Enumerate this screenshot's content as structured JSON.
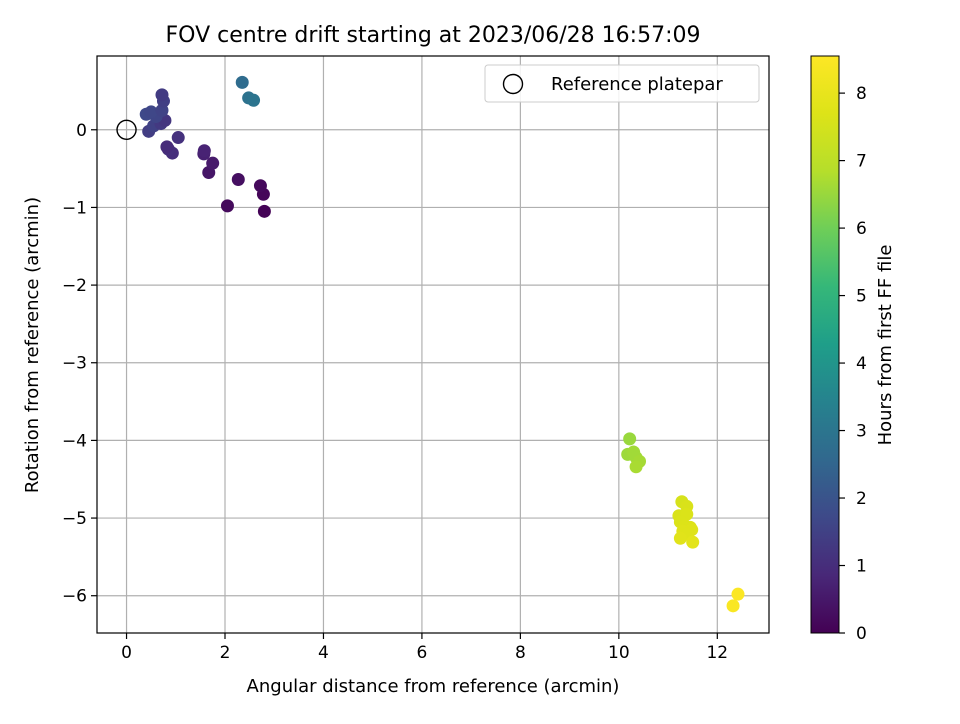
{
  "chart_data": {
    "type": "scatter",
    "title": "FOV centre drift starting at 2023/06/28 16:57:09",
    "xlabel": "Angular distance from reference (arcmin)",
    "ylabel": "Rotation from reference (arcmin)",
    "xlim": [
      -0.6,
      13.05
    ],
    "ylim": [
      -6.48,
      0.95
    ],
    "xticks": [
      0,
      2,
      4,
      6,
      8,
      10,
      12
    ],
    "yticks": [
      0,
      -1,
      -2,
      -3,
      -4,
      -5,
      -6
    ],
    "xtick_labels": [
      "0",
      "2",
      "4",
      "6",
      "8",
      "10",
      "12"
    ],
    "ytick_labels": [
      "0",
      "−1",
      "−2",
      "−3",
      "−4",
      "−5",
      "−6"
    ],
    "grid": true,
    "legend": {
      "placement": "top-right",
      "entries": [
        "Reference platepar"
      ]
    },
    "reference_point": {
      "x": 0,
      "y": 0,
      "label": "Reference platepar"
    },
    "colorbar": {
      "label": "Hours from first FF file",
      "colormap": "viridis",
      "range": [
        0,
        8.55
      ],
      "ticks": [
        0,
        1,
        2,
        3,
        4,
        5,
        6,
        7,
        8
      ],
      "tick_labels": [
        "0",
        "1",
        "2",
        "3",
        "4",
        "5",
        "6",
        "7",
        "8"
      ]
    },
    "points": [
      {
        "x": 2.8,
        "y": -1.05,
        "h": 0.05
      },
      {
        "x": 2.05,
        "y": -0.98,
        "h": 0.2
      },
      {
        "x": 2.78,
        "y": -0.83,
        "h": 0.12
      },
      {
        "x": 2.72,
        "y": -0.72,
        "h": 0.18
      },
      {
        "x": 2.27,
        "y": -0.64,
        "h": 0.3
      },
      {
        "x": 1.67,
        "y": -0.55,
        "h": 0.45
      },
      {
        "x": 1.75,
        "y": -0.43,
        "h": 0.55
      },
      {
        "x": 1.57,
        "y": -0.31,
        "h": 0.7
      },
      {
        "x": 1.58,
        "y": -0.27,
        "h": 0.75
      },
      {
        "x": 0.93,
        "y": -0.3,
        "h": 1.0
      },
      {
        "x": 0.85,
        "y": -0.25,
        "h": 1.05
      },
      {
        "x": 0.82,
        "y": -0.22,
        "h": 0.95
      },
      {
        "x": 1.05,
        "y": -0.1,
        "h": 1.1
      },
      {
        "x": 0.45,
        "y": -0.02,
        "h": 1.4
      },
      {
        "x": 0.55,
        "y": 0.05,
        "h": 1.5
      },
      {
        "x": 0.7,
        "y": 0.08,
        "h": 1.3
      },
      {
        "x": 0.78,
        "y": 0.12,
        "h": 1.2
      },
      {
        "x": 0.6,
        "y": 0.17,
        "h": 1.6
      },
      {
        "x": 0.4,
        "y": 0.2,
        "h": 1.7
      },
      {
        "x": 0.5,
        "y": 0.23,
        "h": 1.65
      },
      {
        "x": 0.72,
        "y": 0.25,
        "h": 1.55
      },
      {
        "x": 0.75,
        "y": 0.37,
        "h": 1.45
      },
      {
        "x": 0.72,
        "y": 0.45,
        "h": 1.35
      },
      {
        "x": 2.35,
        "y": 0.61,
        "h": 2.7
      },
      {
        "x": 2.48,
        "y": 0.41,
        "h": 2.9
      },
      {
        "x": 2.58,
        "y": 0.38,
        "h": 2.95
      },
      {
        "x": 10.22,
        "y": -3.98,
        "h": 6.5
      },
      {
        "x": 10.18,
        "y": -4.18,
        "h": 6.55
      },
      {
        "x": 10.3,
        "y": -4.15,
        "h": 6.6
      },
      {
        "x": 10.35,
        "y": -4.22,
        "h": 6.6
      },
      {
        "x": 10.42,
        "y": -4.27,
        "h": 6.65
      },
      {
        "x": 10.35,
        "y": -4.34,
        "h": 6.7
      },
      {
        "x": 11.28,
        "y": -4.79,
        "h": 7.55
      },
      {
        "x": 11.38,
        "y": -4.85,
        "h": 7.6
      },
      {
        "x": 11.22,
        "y": -4.97,
        "h": 7.6
      },
      {
        "x": 11.38,
        "y": -4.95,
        "h": 7.65
      },
      {
        "x": 11.25,
        "y": -5.05,
        "h": 7.65
      },
      {
        "x": 11.35,
        "y": -5.1,
        "h": 7.7
      },
      {
        "x": 11.45,
        "y": -5.12,
        "h": 7.7
      },
      {
        "x": 11.48,
        "y": -5.15,
        "h": 7.75
      },
      {
        "x": 11.3,
        "y": -5.17,
        "h": 7.75
      },
      {
        "x": 11.4,
        "y": -5.2,
        "h": 7.75
      },
      {
        "x": 11.25,
        "y": -5.26,
        "h": 7.8
      },
      {
        "x": 11.5,
        "y": -5.31,
        "h": 7.85
      },
      {
        "x": 12.42,
        "y": -5.98,
        "h": 8.5
      },
      {
        "x": 12.32,
        "y": -6.13,
        "h": 8.45
      }
    ]
  }
}
